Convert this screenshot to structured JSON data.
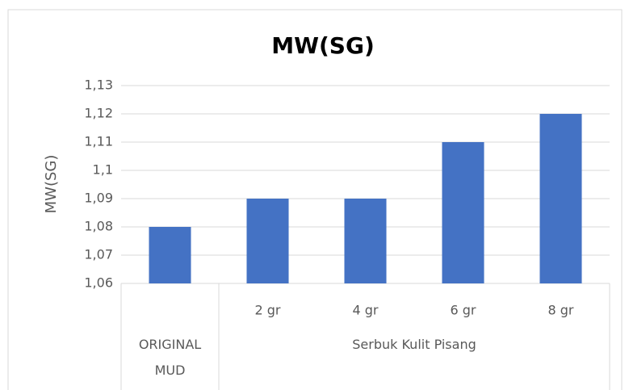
{
  "chart_data": {
    "type": "bar",
    "title": "MW(SG)",
    "y_label": "MW(SG)",
    "categories": [
      null,
      "2 gr",
      "4 gr",
      "6 gr",
      "8 gr"
    ],
    "groups": [
      {
        "name": "ORIGINAL MUD",
        "count": 1
      },
      {
        "name": "Serbuk Kulit Pisang",
        "count": 4
      }
    ],
    "values": [
      1.08,
      1.09,
      1.09,
      1.11,
      1.12
    ],
    "color": "#4472c4",
    "ylim": [
      1.06,
      1.13
    ],
    "yticks": [
      {
        "value": 1.06,
        "label": "1,06"
      },
      {
        "value": 1.07,
        "label": "1,07"
      },
      {
        "value": 1.08,
        "label": "1,08"
      },
      {
        "value": 1.09,
        "label": "1,09"
      },
      {
        "value": 1.1,
        "label": "1,1"
      },
      {
        "value": 1.11,
        "label": "1,11"
      },
      {
        "value": 1.12,
        "label": "1,12"
      },
      {
        "value": 1.13,
        "label": "1,13"
      }
    ],
    "grid": true
  }
}
